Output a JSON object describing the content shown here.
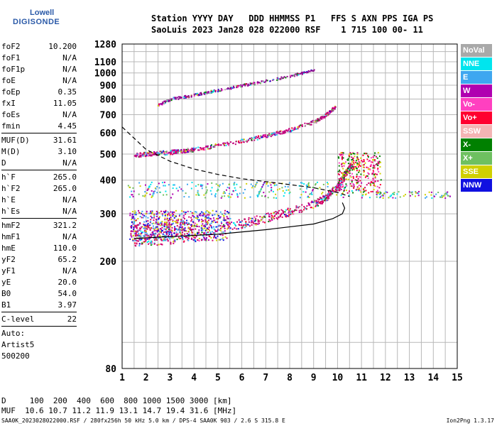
{
  "logo": {
    "top": "Lowell",
    "main": "DIGISONDE"
  },
  "header": {
    "line1": "Station YYYY DAY   DDD HHMMSS P1   FFS S AXN PPS IGA PS",
    "line2": "SaoLuis 2023 Jan28 028 022000 RSF    1 715 100 00- 11"
  },
  "params": [
    {
      "group": [
        {
          "name": "foF2",
          "value": "10.200"
        },
        {
          "name": "foF1",
          "value": "N/A"
        },
        {
          "name": "foF1p",
          "value": "N/A"
        },
        {
          "name": "foE",
          "value": "N/A"
        },
        {
          "name": "foEp",
          "value": "0.35"
        },
        {
          "name": "fxI",
          "value": "11.05"
        },
        {
          "name": "foEs",
          "value": "N/A"
        },
        {
          "name": "fmin",
          "value": "4.45"
        }
      ]
    },
    {
      "group": [
        {
          "name": "MUF(D)",
          "value": "31.61"
        },
        {
          "name": "M(D)",
          "value": "3.10"
        },
        {
          "name": "D",
          "value": "N/A"
        }
      ]
    },
    {
      "group": [
        {
          "name": "h`F",
          "value": "265.0"
        },
        {
          "name": "h`F2",
          "value": "265.0"
        },
        {
          "name": "h`E",
          "value": "N/A"
        },
        {
          "name": "h`Es",
          "value": "N/A"
        }
      ]
    },
    {
      "group": [
        {
          "name": "hmF2",
          "value": "321.2"
        },
        {
          "name": "hmF1",
          "value": "N/A"
        },
        {
          "name": "hmE",
          "value": "110.0"
        },
        {
          "name": "yF2",
          "value": "65.2"
        },
        {
          "name": "yF1",
          "value": "N/A"
        },
        {
          "name": "yE",
          "value": "20.0"
        },
        {
          "name": "B0",
          "value": "54.0"
        },
        {
          "name": "B1",
          "value": "3.97"
        }
      ]
    },
    {
      "group": [
        {
          "name": "C-level",
          "value": "22"
        }
      ]
    }
  ],
  "auto": [
    "Auto:",
    "Artist5",
    "500200"
  ],
  "legend": [
    {
      "label": "NoVal",
      "color": "#a9a9a9"
    },
    {
      "label": "NNE",
      "color": "#00e5ee"
    },
    {
      "label": "E",
      "color": "#3ea7f0"
    },
    {
      "label": "W",
      "color": "#b000b0"
    },
    {
      "label": "Vo-",
      "color": "#ff40c0"
    },
    {
      "label": "Vo+",
      "color": "#ff0030"
    },
    {
      "label": "SSW",
      "color": "#f4b4b4"
    },
    {
      "label": "X-",
      "color": "#008000"
    },
    {
      "label": "X+",
      "color": "#6ec060"
    },
    {
      "label": "SSE",
      "color": "#d0d000"
    },
    {
      "label": "NNW",
      "color": "#1010e0"
    }
  ],
  "footer": {
    "line1": "D     100  200  400  600  800 1000 1500 3000 [km]",
    "line2": "MUF  10.6 10.7 11.2 11.9 13.1 14.7 19.4 31.6 [MHz]"
  },
  "bottom": "SAA0K_2023028022000.RSF / 280fx256h 50 kHz 5.0 km / DPS-4 SAA0K 903 / 2.6 S 315.8 E",
  "version": "Ion2Png 1.3.17",
  "chart_data": {
    "type": "scatter",
    "xlim": [
      1,
      15
    ],
    "ylim_log": [
      80,
      1280
    ],
    "x_ticks": [
      1,
      2,
      3,
      4,
      5,
      6,
      7,
      8,
      9,
      10,
      11,
      12,
      13,
      14,
      15
    ],
    "y_tick_labels": [
      80,
      200,
      300,
      400,
      500,
      600,
      700,
      800,
      900,
      1000,
      1100,
      1280
    ],
    "grid": true,
    "traces": [
      {
        "name": "F-trace",
        "color": "#d0006a",
        "points": [
          [
            1.5,
            245
          ],
          [
            2,
            248
          ],
          [
            3,
            252
          ],
          [
            4,
            257
          ],
          [
            5,
            265
          ],
          [
            6,
            275
          ],
          [
            7,
            290
          ],
          [
            8,
            305
          ],
          [
            9,
            325
          ],
          [
            9.5,
            345
          ],
          [
            10,
            380
          ],
          [
            10.3,
            420
          ],
          [
            10.6,
            460
          ]
        ]
      },
      {
        "name": "2nd-hop",
        "color": "#c0007a",
        "points": [
          [
            1.5,
            495
          ],
          [
            2,
            500
          ],
          [
            3,
            508
          ],
          [
            4,
            520
          ],
          [
            5,
            540
          ],
          [
            6,
            560
          ],
          [
            7,
            585
          ],
          [
            8,
            615
          ],
          [
            9,
            660
          ],
          [
            9.5,
            700
          ],
          [
            9.9,
            750
          ]
        ]
      },
      {
        "name": "3rd-hop",
        "color": "#900090",
        "points": [
          [
            2.5,
            760
          ],
          [
            3,
            800
          ],
          [
            4,
            830
          ],
          [
            5,
            865
          ],
          [
            6,
            900
          ],
          [
            7,
            935
          ],
          [
            8,
            975
          ],
          [
            9,
            1030
          ]
        ]
      }
    ],
    "model_profile_solid": [
      [
        1.5,
        243
      ],
      [
        3,
        247
      ],
      [
        5,
        252
      ],
      [
        7,
        262
      ],
      [
        9,
        275
      ],
      [
        9.8,
        288
      ],
      [
        10.2,
        300
      ],
      [
        10.3,
        315
      ],
      [
        10.2,
        330
      ]
    ],
    "model_profile_dashed": [
      [
        1.0,
        630
      ],
      [
        2,
        520
      ],
      [
        3,
        470
      ],
      [
        4,
        440
      ],
      [
        5,
        420
      ],
      [
        6,
        405
      ],
      [
        7,
        395
      ],
      [
        8,
        385
      ],
      [
        9,
        375
      ],
      [
        10,
        360
      ],
      [
        10.5,
        348
      ]
    ]
  }
}
